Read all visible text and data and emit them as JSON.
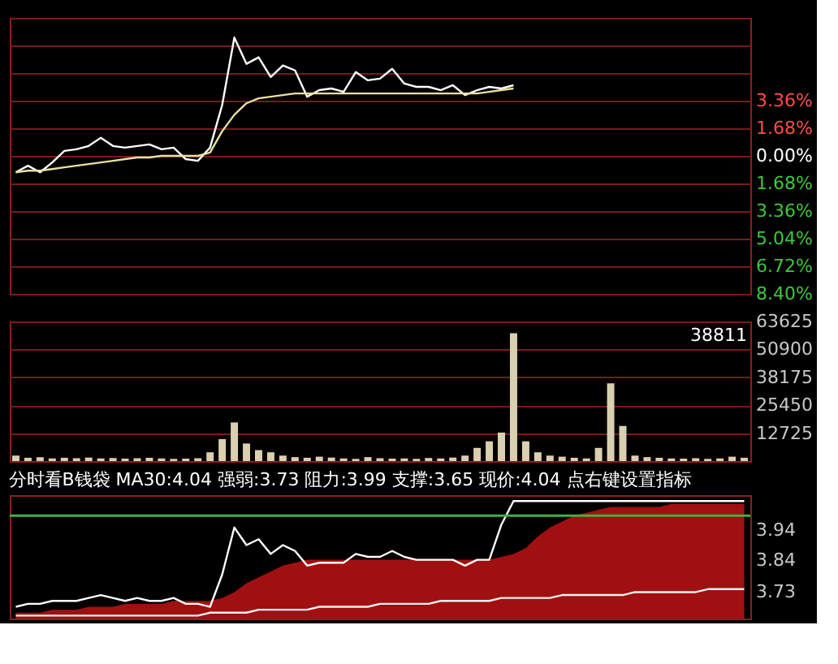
{
  "chart_data": [
    {
      "type": "line",
      "categories": [
        null,
        null,
        null,
        null,
        null,
        null,
        null,
        null,
        null,
        null,
        null,
        null,
        null,
        null,
        null,
        null,
        null,
        null,
        null,
        null,
        null,
        null,
        null,
        null,
        null,
        null,
        null,
        null,
        null,
        null,
        null,
        null,
        null,
        null,
        null,
        null,
        null,
        null,
        null,
        null,
        null,
        null,
        null,
        null,
        null,
        null,
        null,
        null,
        null,
        null,
        null,
        null,
        null,
        null,
        null,
        null,
        null,
        null,
        null,
        null,
        null
      ],
      "series": [
        {
          "color": "#ffffff",
          "values": [
            -1.0,
            -0.6,
            -1.0,
            -0.4,
            0.3,
            0.4,
            0.6,
            1.1,
            0.6,
            0.5,
            0.6,
            0.7,
            0.4,
            0.5,
            -0.2,
            -0.3,
            0.5,
            3.1,
            7.2,
            5.6,
            6.0,
            4.8,
            5.5,
            5.2,
            3.6,
            4.0,
            4.1,
            3.9,
            5.1,
            4.6,
            4.7,
            5.3,
            4.4,
            4.2,
            4.2,
            4.0,
            4.3,
            3.7,
            4.0,
            4.2,
            4.1,
            4.3,
            null,
            null,
            null,
            null,
            null,
            null,
            null,
            null,
            null,
            null,
            null,
            null,
            null,
            null,
            null,
            null,
            null,
            null,
            null
          ]
        },
        {
          "color": "#e8e0a0",
          "values": [
            -1.0,
            -0.9,
            -0.9,
            -0.8,
            -0.7,
            -0.6,
            -0.5,
            -0.4,
            -0.3,
            -0.2,
            -0.1,
            -0.1,
            0.0,
            0.0,
            0.0,
            0.0,
            0.2,
            1.5,
            2.5,
            3.2,
            3.5,
            3.6,
            3.7,
            3.8,
            3.8,
            3.8,
            3.8,
            3.8,
            3.8,
            3.8,
            3.8,
            3.8,
            3.8,
            3.8,
            3.8,
            3.8,
            3.8,
            3.8,
            3.8,
            3.9,
            4.0,
            4.1,
            null,
            null,
            null,
            null,
            null,
            null,
            null,
            null,
            null,
            null,
            null,
            null,
            null,
            null,
            null,
            null,
            null,
            null,
            null
          ]
        }
      ],
      "ylim": [
        -8.4,
        8.4
      ],
      "yticks": [
        {
          "value": 8.4,
          "label": null
        },
        {
          "value": 6.72,
          "label": null
        },
        {
          "value": 5.04,
          "label": null
        },
        {
          "value": 3.36,
          "label": "3.36%"
        },
        {
          "value": 1.68,
          "label": "1.68%"
        },
        {
          "value": 0,
          "label": "0.00%"
        },
        {
          "value": -1.68,
          "label": "1.68%"
        },
        {
          "value": -3.36,
          "label": "3.36%"
        },
        {
          "value": -5.04,
          "label": "5.04%"
        },
        {
          "value": -6.72,
          "label": "6.72%"
        },
        {
          "value": -8.4,
          "label": "8.40%"
        }
      ],
      "grid": "y"
    },
    {
      "type": "bar",
      "categories": [
        null,
        null,
        null,
        null,
        null,
        null,
        null,
        null,
        null,
        null,
        null,
        null,
        null,
        null,
        null,
        null,
        null,
        null,
        null,
        null,
        null,
        null,
        null,
        null,
        null,
        null,
        null,
        null,
        null,
        null,
        null,
        null,
        null,
        null,
        null,
        null,
        null,
        null,
        null,
        null,
        null,
        null,
        null,
        null,
        null,
        null,
        null,
        null,
        null,
        null,
        null,
        null,
        null,
        null,
        null,
        null,
        null,
        null,
        null,
        null,
        null
      ],
      "series": [
        {
          "color": "#d8d0b0",
          "values": [
            2500,
            1500,
            1800,
            1200,
            1500,
            1300,
            1600,
            1200,
            1400,
            1100,
            1300,
            1500,
            1200,
            1000,
            1100,
            1300,
            4000,
            10000,
            17600,
            8000,
            5000,
            4000,
            2500,
            1800,
            1500,
            2000,
            1600,
            1200,
            1000,
            1800,
            1300,
            1100,
            1200,
            1000,
            1400,
            1200,
            1600,
            2500,
            6000,
            9000,
            13000,
            58300,
            9000,
            4000,
            2500,
            2000,
            1500,
            1200,
            6000,
            35400,
            16000,
            2500,
            1800,
            1500,
            1200,
            1100,
            1300,
            1000,
            1200,
            2000,
            1500
          ]
        }
      ],
      "ylim": [
        0,
        63625
      ],
      "yticks": [
        12725,
        25450,
        38175,
        50900,
        63625
      ],
      "grid": "y",
      "annotations": [
        "38811"
      ]
    },
    {
      "type": "line",
      "title": "分时看B钱袋  MA30:4.04  强弱:3.73  阻力:3.99  支撑:3.65  现价:4.04  点右键设置指标",
      "categories": [
        null,
        null,
        null,
        null,
        null,
        null,
        null,
        null,
        null,
        null,
        null,
        null,
        null,
        null,
        null,
        null,
        null,
        null,
        null,
        null,
        null,
        null,
        null,
        null,
        null,
        null,
        null,
        null,
        null,
        null,
        null,
        null,
        null,
        null,
        null,
        null,
        null,
        null,
        null,
        null,
        null,
        null,
        null,
        null,
        null,
        null,
        null,
        null,
        null,
        null,
        null,
        null,
        null,
        null,
        null,
        null,
        null,
        null,
        null,
        null,
        null
      ],
      "series": [
        {
          "type": "area",
          "color": "#a01010",
          "values": [
            3.66,
            3.66,
            3.66,
            3.67,
            3.67,
            3.67,
            3.68,
            3.68,
            3.68,
            3.69,
            3.69,
            3.69,
            3.69,
            3.7,
            3.7,
            3.7,
            3.7,
            3.71,
            3.73,
            3.76,
            3.78,
            3.8,
            3.82,
            3.83,
            3.84,
            3.84,
            3.84,
            3.84,
            3.84,
            3.84,
            3.84,
            3.84,
            3.84,
            3.84,
            3.84,
            3.84,
            3.84,
            3.84,
            3.84,
            3.84,
            3.85,
            3.86,
            3.88,
            3.92,
            3.95,
            3.97,
            3.99,
            4.0,
            4.01,
            4.02,
            4.02,
            4.02,
            4.02,
            4.02,
            4.03,
            4.03,
            4.03,
            4.03,
            4.03,
            4.03,
            4.03
          ]
        },
        {
          "type": "line",
          "color": "#ffffff",
          "values": [
            3.68,
            3.69,
            3.69,
            3.7,
            3.7,
            3.7,
            3.71,
            3.72,
            3.71,
            3.7,
            3.71,
            3.7,
            3.7,
            3.71,
            3.69,
            3.69,
            3.68,
            3.79,
            3.95,
            3.89,
            3.91,
            3.86,
            3.89,
            3.87,
            3.82,
            3.83,
            3.83,
            3.83,
            3.86,
            3.85,
            3.85,
            3.87,
            3.85,
            3.84,
            3.84,
            3.84,
            3.84,
            3.82,
            3.84,
            3.84,
            3.96,
            4.04,
            4.04,
            4.04,
            4.04,
            4.04,
            4.04,
            4.04,
            4.04,
            4.04,
            4.04,
            4.04,
            4.04,
            4.04,
            4.04,
            4.04,
            4.04,
            4.04,
            4.04,
            4.04,
            4.04
          ]
        },
        {
          "type": "line",
          "color": "#f0f0f0",
          "values": [
            3.65,
            3.65,
            3.65,
            3.65,
            3.65,
            3.65,
            3.65,
            3.65,
            3.65,
            3.65,
            3.65,
            3.65,
            3.65,
            3.65,
            3.65,
            3.65,
            3.66,
            3.66,
            3.66,
            3.66,
            3.67,
            3.67,
            3.67,
            3.67,
            3.67,
            3.68,
            3.68,
            3.68,
            3.68,
            3.68,
            3.69,
            3.69,
            3.69,
            3.69,
            3.69,
            3.7,
            3.7,
            3.7,
            3.7,
            3.7,
            3.71,
            3.71,
            3.71,
            3.71,
            3.71,
            3.72,
            3.72,
            3.72,
            3.72,
            3.72,
            3.72,
            3.73,
            3.73,
            3.73,
            3.73,
            3.73,
            3.73,
            3.74,
            3.74,
            3.74,
            3.74
          ]
        }
      ],
      "ylim": [
        3.64,
        4.06
      ],
      "yticks": [
        3.73,
        3.84,
        3.94
      ],
      "ref_lines": [
        {
          "axis": "y",
          "value": 3.99,
          "label": null,
          "color": "#40b040"
        }
      ]
    }
  ]
}
